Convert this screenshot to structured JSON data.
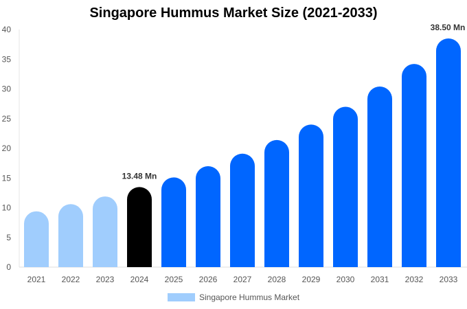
{
  "chart_data": {
    "type": "bar",
    "title": "Singapore Hummus Market Size (2021-2033)",
    "categories": [
      "2021",
      "2022",
      "2023",
      "2024",
      "2025",
      "2026",
      "2027",
      "2028",
      "2029",
      "2030",
      "2031",
      "2032",
      "2033"
    ],
    "series": [
      {
        "name": "Singapore Hummus Market",
        "values": [
          9.4,
          10.6,
          11.9,
          13.48,
          15.1,
          17.0,
          19.1,
          21.4,
          24.0,
          27.0,
          30.4,
          34.2,
          38.5
        ]
      }
    ],
    "data_labels": {
      "3": "13.48 Mn",
      "12": "38.50 Mn"
    },
    "ylim": [
      0,
      40
    ],
    "yticks": [
      0,
      5,
      10,
      15,
      20,
      25,
      30,
      35,
      40
    ],
    "xlabel": "",
    "ylabel": "",
    "grid": false,
    "legend": "bottom",
    "colors": {
      "historical": "#a0cdfd",
      "base_year": "#000000",
      "forecast": "#0066ff"
    }
  }
}
